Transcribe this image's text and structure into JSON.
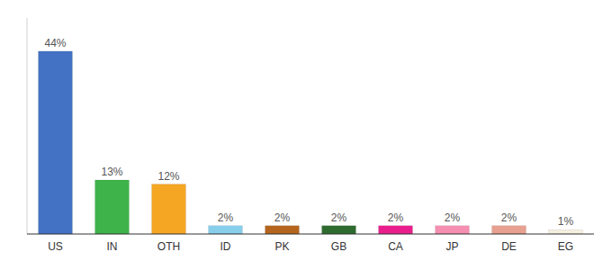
{
  "chart_data": {
    "type": "bar",
    "categories": [
      "US",
      "IN",
      "OTH",
      "ID",
      "PK",
      "GB",
      "CA",
      "JP",
      "DE",
      "EG"
    ],
    "values": [
      44,
      13,
      12,
      2,
      2,
      2,
      2,
      2,
      2,
      1
    ],
    "value_labels": [
      "44%",
      "13%",
      "12%",
      "2%",
      "2%",
      "2%",
      "2%",
      "2%",
      "2%",
      "1%"
    ],
    "colors": [
      "#4371c4",
      "#3db34a",
      "#f5a623",
      "#87ceeb",
      "#b5651d",
      "#2e6b2e",
      "#e91e8c",
      "#f48fb1",
      "#e8a090",
      "#f5f0e0"
    ],
    "ylim": [
      0,
      52
    ],
    "data_labels": true,
    "tick_labels": "x",
    "grid": false
  }
}
